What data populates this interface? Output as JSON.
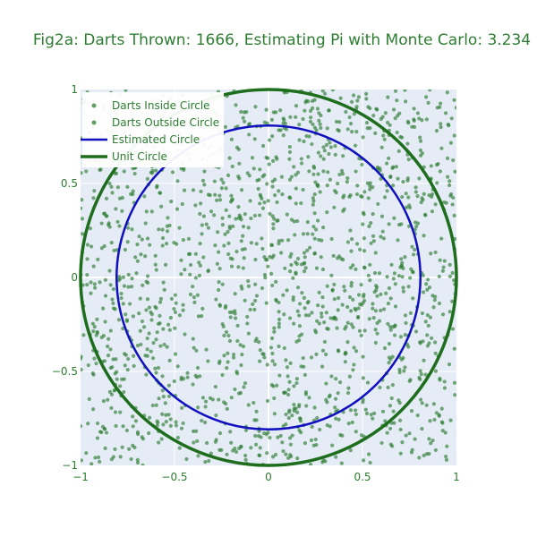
{
  "chart_data": {
    "type": "scatter",
    "title": "Fig2a: Darts Thrown: 1666, Estimating Pi with Monte Carlo: 3.234",
    "xlabel": "",
    "ylabel": "",
    "xlim": [
      -1,
      1
    ],
    "ylim": [
      -1,
      1
    ],
    "x_ticks": [
      -1,
      -0.5,
      0,
      0.5,
      1
    ],
    "y_ticks": [
      -1,
      -0.5,
      0,
      0.5,
      1
    ],
    "x_tick_labels": [
      "−1",
      "−0.5",
      "0",
      "0.5",
      "1"
    ],
    "y_tick_labels": [
      "−1",
      "−0.5",
      "0",
      "0.5",
      "1"
    ],
    "grid": true,
    "legend_position": "top-left",
    "darts_thrown": 1666,
    "pi_estimate": 3.234,
    "series": [
      {
        "name": "Darts Inside Circle",
        "kind": "markers",
        "count": 1347,
        "color": "#2e7d32"
      },
      {
        "name": "Darts Outside Circle",
        "kind": "markers",
        "count": 319,
        "color": "#2e7d32"
      },
      {
        "name": "Estimated Circle",
        "kind": "circle",
        "radius": 0.8083,
        "color": "#1010c0"
      },
      {
        "name": "Unit Circle",
        "kind": "circle",
        "radius": 1,
        "color": "#1e6e1e"
      }
    ],
    "colors": {
      "title": "#2e7d32",
      "tick": "#2e7d32",
      "plot_bg": "#e5ecf6",
      "grid": "#ffffff"
    }
  }
}
